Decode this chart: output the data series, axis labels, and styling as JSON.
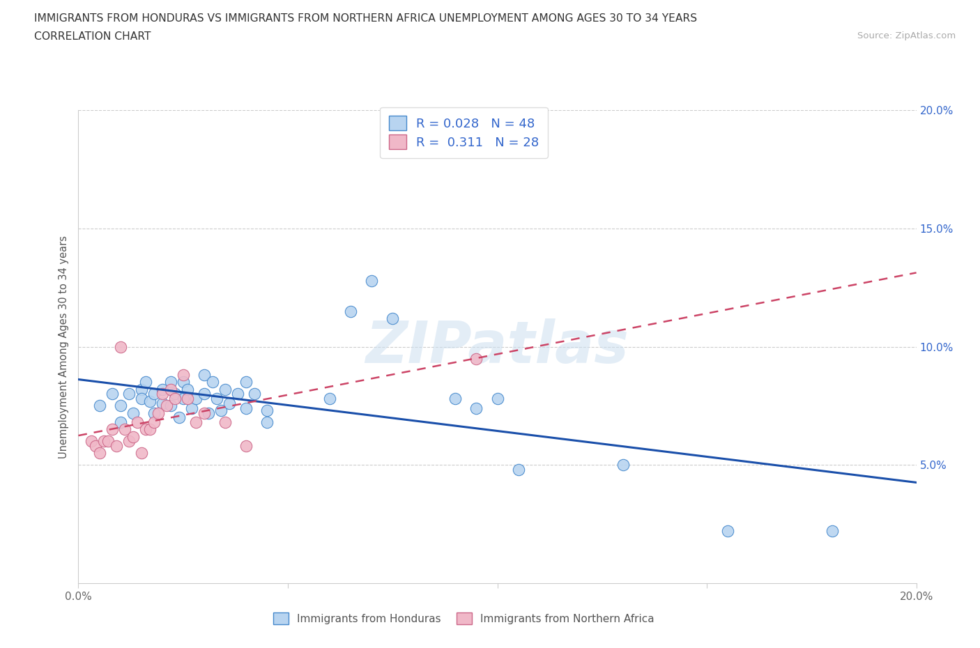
{
  "title_line1": "IMMIGRANTS FROM HONDURAS VS IMMIGRANTS FROM NORTHERN AFRICA UNEMPLOYMENT AMONG AGES 30 TO 34 YEARS",
  "title_line2": "CORRELATION CHART",
  "source_text": "Source: ZipAtlas.com",
  "ylabel": "Unemployment Among Ages 30 to 34 years",
  "xlim": [
    0.0,
    0.2
  ],
  "ylim": [
    0.0,
    0.2
  ],
  "xtick_vals": [
    0.0,
    0.05,
    0.1,
    0.15,
    0.2
  ],
  "ytick_vals": [
    0.05,
    0.1,
    0.15,
    0.2
  ],
  "R_honduras": 0.028,
  "N_honduras": 48,
  "R_northern_africa": 0.311,
  "N_northern_africa": 28,
  "watermark": "ZIPatlas",
  "legend_label_1": "Immigrants from Honduras",
  "legend_label_2": "Immigrants from Northern Africa",
  "color_honduras_face": "#b8d4f0",
  "color_honduras_edge": "#4488cc",
  "color_honduras_line": "#1a4faa",
  "color_na_face": "#f0b8c8",
  "color_na_edge": "#cc6688",
  "color_na_line": "#cc4466",
  "honduras_x": [
    0.005,
    0.008,
    0.01,
    0.01,
    0.012,
    0.013,
    0.015,
    0.015,
    0.016,
    0.017,
    0.018,
    0.018,
    0.02,
    0.02,
    0.022,
    0.022,
    0.023,
    0.024,
    0.025,
    0.025,
    0.026,
    0.027,
    0.028,
    0.03,
    0.03,
    0.031,
    0.032,
    0.033,
    0.034,
    0.035,
    0.036,
    0.038,
    0.04,
    0.04,
    0.042,
    0.045,
    0.045,
    0.06,
    0.065,
    0.07,
    0.075,
    0.09,
    0.095,
    0.1,
    0.105,
    0.13,
    0.155,
    0.18
  ],
  "honduras_y": [
    0.075,
    0.08,
    0.075,
    0.068,
    0.08,
    0.072,
    0.082,
    0.078,
    0.085,
    0.077,
    0.08,
    0.072,
    0.082,
    0.076,
    0.085,
    0.075,
    0.08,
    0.07,
    0.085,
    0.078,
    0.082,
    0.074,
    0.078,
    0.088,
    0.08,
    0.072,
    0.085,
    0.078,
    0.073,
    0.082,
    0.076,
    0.08,
    0.085,
    0.074,
    0.08,
    0.073,
    0.068,
    0.078,
    0.115,
    0.128,
    0.112,
    0.078,
    0.074,
    0.078,
    0.048,
    0.05,
    0.022,
    0.022
  ],
  "northern_africa_x": [
    0.003,
    0.004,
    0.005,
    0.006,
    0.007,
    0.008,
    0.009,
    0.01,
    0.011,
    0.012,
    0.013,
    0.014,
    0.015,
    0.016,
    0.017,
    0.018,
    0.019,
    0.02,
    0.021,
    0.022,
    0.023,
    0.025,
    0.026,
    0.028,
    0.03,
    0.035,
    0.04,
    0.095
  ],
  "northern_africa_y": [
    0.06,
    0.058,
    0.055,
    0.06,
    0.06,
    0.065,
    0.058,
    0.1,
    0.065,
    0.06,
    0.062,
    0.068,
    0.055,
    0.065,
    0.065,
    0.068,
    0.072,
    0.08,
    0.075,
    0.082,
    0.078,
    0.088,
    0.078,
    0.068,
    0.072,
    0.068,
    0.058,
    0.095
  ]
}
